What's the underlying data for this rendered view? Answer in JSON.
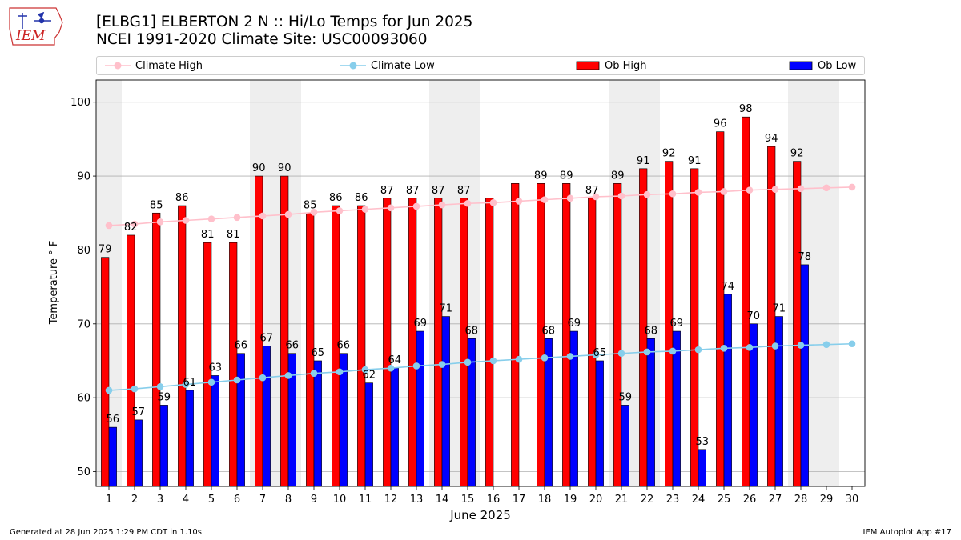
{
  "header": {
    "logo_text": "IEM",
    "title_line1": "[ELBG1] ELBERTON 2 N :: Hi/Lo Temps for Jun 2025",
    "title_line2": "NCEI 1991-2020 Climate Site: USC00093060"
  },
  "legend": {
    "items": [
      {
        "label": "Climate High",
        "kind": "line",
        "color": "#ffc0cb"
      },
      {
        "label": "Climate Low",
        "kind": "line",
        "color": "#87ceeb"
      },
      {
        "label": "Ob High",
        "kind": "bar",
        "color": "#ff0000"
      },
      {
        "label": "Ob Low",
        "kind": "bar",
        "color": "#0000ff"
      }
    ]
  },
  "footer": {
    "generated": "Generated at 28 Jun 2025 1:29 PM CDT in 1.10s",
    "app": "IEM Autoplot App #17"
  },
  "chart_data": {
    "type": "bar",
    "title": "[ELBG1] ELBERTON 2 N :: Hi/Lo Temps for Jun 2025",
    "subtitle": "NCEI 1991-2020 Climate Site: USC00093060",
    "xlabel": "June 2025",
    "ylabel": "Temperature $^\\circ$F",
    "ylabel_display": "Temperature ° F",
    "ylim": [
      48,
      103
    ],
    "yticks": [
      50,
      60,
      70,
      80,
      90,
      100
    ],
    "grid": "horizontal",
    "legend_position": "top",
    "categories": [
      "1",
      "2",
      "3",
      "4",
      "5",
      "6",
      "7",
      "8",
      "9",
      "10",
      "11",
      "12",
      "13",
      "14",
      "15",
      "16",
      "17",
      "18",
      "19",
      "20",
      "21",
      "22",
      "23",
      "24",
      "25",
      "26",
      "27",
      "28",
      "29",
      "30"
    ],
    "weekend_shading_days": [
      [
        1,
        1
      ],
      [
        7,
        8
      ],
      [
        14,
        15
      ],
      [
        21,
        22
      ],
      [
        28,
        29
      ]
    ],
    "series": [
      {
        "name": "Ob High",
        "kind": "bar",
        "color": "#ff0000",
        "values": [
          79,
          82,
          85,
          86,
          81,
          81,
          90,
          90,
          85,
          86,
          86,
          87,
          87,
          87,
          87,
          87,
          89,
          89,
          89,
          87,
          89,
          91,
          92,
          91,
          96,
          98,
          94,
          92,
          null,
          null
        ],
        "labels": [
          79,
          82,
          85,
          86,
          81,
          81,
          90,
          90,
          85,
          86,
          86,
          87,
          87,
          87,
          87,
          null,
          null,
          89,
          89,
          87,
          89,
          91,
          92,
          91,
          96,
          98,
          94,
          92,
          null,
          null
        ]
      },
      {
        "name": "Ob Low",
        "kind": "bar",
        "color": "#0000ff",
        "values": [
          56,
          57,
          59,
          61,
          63,
          66,
          67,
          66,
          65,
          66,
          62,
          64,
          69,
          71,
          68,
          null,
          null,
          68,
          69,
          65,
          59,
          68,
          69,
          53,
          74,
          70,
          71,
          78,
          null,
          null
        ],
        "labels": [
          56,
          57,
          59,
          61,
          63,
          66,
          67,
          66,
          65,
          66,
          62,
          64,
          69,
          71,
          68,
          null,
          null,
          68,
          69,
          65,
          59,
          68,
          69,
          53,
          74,
          70,
          71,
          78,
          null,
          null
        ]
      },
      {
        "name": "Climate High",
        "kind": "line",
        "color": "#ffc0cb",
        "values": [
          83.3,
          83.5,
          83.8,
          84.0,
          84.2,
          84.4,
          84.6,
          84.8,
          85.1,
          85.3,
          85.5,
          85.7,
          85.9,
          86.1,
          86.3,
          86.4,
          86.6,
          86.8,
          87.0,
          87.2,
          87.3,
          87.5,
          87.6,
          87.8,
          87.9,
          88.1,
          88.2,
          88.3,
          88.4,
          88.5
        ]
      },
      {
        "name": "Climate Low",
        "kind": "line",
        "color": "#87ceeb",
        "values": [
          61.0,
          61.2,
          61.5,
          61.8,
          62.1,
          62.4,
          62.7,
          63.0,
          63.3,
          63.5,
          63.8,
          64.0,
          64.3,
          64.5,
          64.8,
          65.0,
          65.2,
          65.4,
          65.6,
          65.8,
          66.0,
          66.2,
          66.3,
          66.5,
          66.7,
          66.8,
          67.0,
          67.1,
          67.2,
          67.3
        ]
      }
    ]
  }
}
